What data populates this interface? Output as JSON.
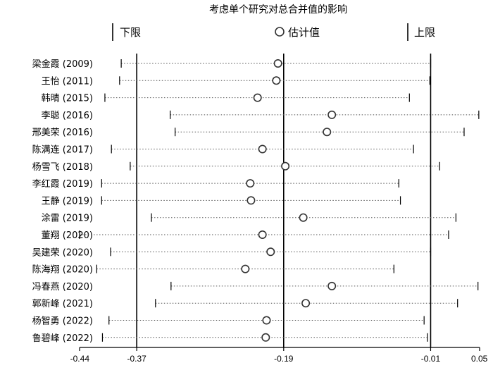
{
  "chart_data": {
    "type": "forest",
    "title": "考虑单个研究对总合并值的影响",
    "legend": {
      "lower_label": "下限",
      "estimate_label": "估计值",
      "upper_label": "上限"
    },
    "xlim": [
      -0.44,
      0.05
    ],
    "x_ticks": [
      {
        "value": -0.44,
        "label": "-0.44"
      },
      {
        "value": -0.37,
        "label": "-0.37"
      },
      {
        "value": -0.19,
        "label": "-0.19"
      },
      {
        "value": -0.01,
        "label": "-0.01"
      },
      {
        "value": 0.05,
        "label": "0.05"
      }
    ],
    "reference_lines": [
      -0.37,
      -0.19,
      -0.01
    ],
    "studies": [
      {
        "label": "梁金霞 (2009)",
        "lower": -0.389,
        "estimate": -0.197,
        "upper": -0.01
      },
      {
        "label": "王怡 (2011)",
        "lower": -0.391,
        "estimate": -0.199,
        "upper": -0.011
      },
      {
        "label": "韩晴 (2015)",
        "lower": -0.409,
        "estimate": -0.222,
        "upper": -0.036
      },
      {
        "label": "李聪 (2016)",
        "lower": -0.329,
        "estimate": -0.131,
        "upper": 0.049
      },
      {
        "label": "邢美荣 (2016)",
        "lower": -0.323,
        "estimate": -0.137,
        "upper": 0.031
      },
      {
        "label": "陈满连 (2017)",
        "lower": -0.401,
        "estimate": -0.216,
        "upper": -0.031
      },
      {
        "label": "杨雪飞 (2018)",
        "lower": -0.378,
        "estimate": -0.188,
        "upper": 0.001
      },
      {
        "label": "李红霞 (2019)",
        "lower": -0.413,
        "estimate": -0.231,
        "upper": -0.049
      },
      {
        "label": "王静 (2019)",
        "lower": -0.413,
        "estimate": -0.23,
        "upper": -0.047
      },
      {
        "label": "涂雷 (2019)",
        "lower": -0.352,
        "estimate": -0.166,
        "upper": 0.021
      },
      {
        "label": "董翔 (2020)",
        "lower": -0.44,
        "estimate": -0.216,
        "upper": 0.012
      },
      {
        "label": "吴建荣 (2020)",
        "lower": -0.402,
        "estimate": -0.206,
        "upper": -0.01
      },
      {
        "label": "陈海翔 (2020)",
        "lower": -0.419,
        "estimate": -0.237,
        "upper": -0.055
      },
      {
        "label": "冯春燕 (2020)",
        "lower": -0.328,
        "estimate": -0.131,
        "upper": 0.048
      },
      {
        "label": "郭新峰 (2021)",
        "lower": -0.347,
        "estimate": -0.163,
        "upper": 0.023
      },
      {
        "label": "杨智勇 (2022)",
        "lower": -0.404,
        "estimate": -0.211,
        "upper": -0.018
      },
      {
        "label": "鲁碧峰 (2022)",
        "lower": -0.412,
        "estimate": -0.212,
        "upper": -0.014
      }
    ]
  }
}
